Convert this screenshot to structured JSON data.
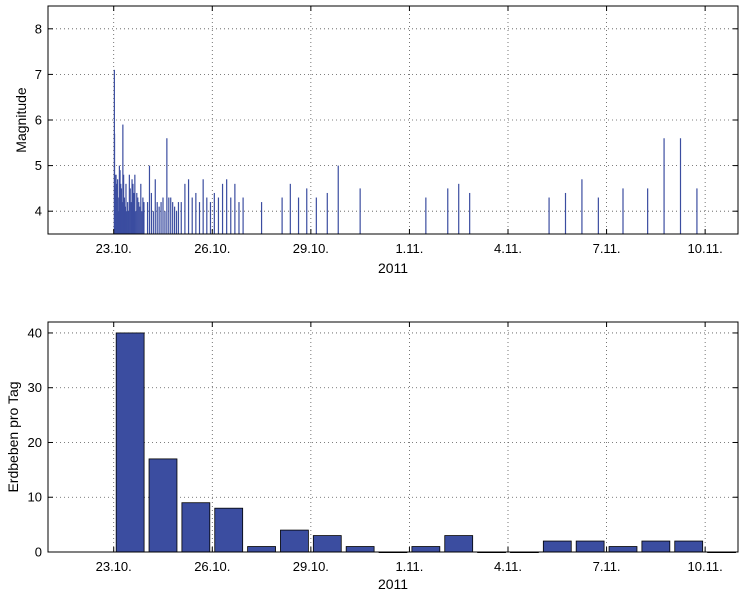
{
  "chart_data": [
    {
      "type": "bar",
      "subtype": "stem",
      "title": "",
      "xlabel": "2011",
      "ylabel": "Magnitude",
      "ylim": [
        3.5,
        8.5
      ],
      "yticks": [
        4,
        5,
        6,
        7,
        8
      ],
      "xlim": [
        "2011-10-21",
        "2011-11-11"
      ],
      "xticks": [
        "23.10.",
        "26.10.",
        "29.10.",
        "1.11.",
        "4.11.",
        "7.11.",
        "10.11."
      ],
      "grid": true,
      "bar_color": "#3B4DA0",
      "days": [
        "23.10.",
        "24.10.",
        "25.10.",
        "26.10.",
        "27.10.",
        "28.10.",
        "29.10.",
        "30.10.",
        "31.10.",
        "1.11.",
        "2.11.",
        "3.11.",
        "4.11.",
        "5.11.",
        "6.11.",
        "7.11.",
        "8.11.",
        "9.11.",
        "10.11."
      ],
      "events_by_day": [
        [
          7.1,
          5.7,
          4.8,
          4.2,
          4.5,
          4.8,
          4.6,
          4.2,
          4.7,
          4.0,
          4.3,
          5.0,
          4.9,
          4.6,
          4.5,
          4.2,
          5.9,
          4.8,
          4.3,
          4.1,
          4.6,
          4.0,
          4.2,
          4.0,
          4.8,
          4.5,
          4.2,
          4.7,
          4.6,
          4.4,
          4.8,
          4.0,
          4.4,
          4.3,
          4.2,
          4.1,
          4.6,
          4.0,
          4.3,
          4.2
        ],
        [
          4.2,
          5.0,
          4.4,
          4.0,
          4.7,
          4.2,
          4.1,
          4.2,
          4.3,
          4.0,
          5.6,
          4.3,
          4.3,
          4.2,
          4.1,
          4.0,
          4.2
        ],
        [
          4.2,
          4.6,
          4.7,
          4.3,
          4.4,
          4.2,
          4.7,
          4.3,
          4.2
        ],
        [
          4.4,
          4.3,
          4.6,
          4.7,
          4.3,
          4.6,
          4.2,
          4.3
        ],
        [
          4.2
        ],
        [
          4.3,
          4.6,
          4.3,
          4.5
        ],
        [
          4.3,
          4.4,
          5.0
        ],
        [
          4.5
        ],
        [],
        [
          4.3
        ],
        [
          4.5,
          4.6,
          4.4
        ],
        [],
        [],
        [
          4.3,
          4.4
        ],
        [
          4.7,
          4.3
        ],
        [
          4.5
        ],
        [
          4.5,
          5.6
        ],
        [
          5.6,
          4.5
        ],
        []
      ]
    },
    {
      "type": "bar",
      "title": "",
      "xlabel": "2011",
      "ylabel": "Erdbeben pro Tag",
      "ylim": [
        0,
        42
      ],
      "yticks": [
        0,
        10,
        20,
        30,
        40
      ],
      "xlim": [
        "2011-10-21",
        "2011-11-11"
      ],
      "xticks": [
        "23.10.",
        "26.10.",
        "29.10.",
        "1.11.",
        "4.11.",
        "7.11.",
        "10.11."
      ],
      "grid": true,
      "bar_color": "#3B4DA0",
      "categories": [
        "23.10.",
        "24.10.",
        "25.10.",
        "26.10.",
        "27.10.",
        "28.10.",
        "29.10.",
        "30.10.",
        "31.10.",
        "1.11.",
        "2.11.",
        "3.11.",
        "4.11.",
        "5.11.",
        "6.11.",
        "7.11.",
        "8.11.",
        "9.11.",
        "10.11."
      ],
      "values": [
        40,
        17,
        9,
        8,
        1,
        4,
        3,
        1,
        0,
        1,
        3,
        0,
        0,
        2,
        2,
        1,
        2,
        2,
        0
      ]
    }
  ]
}
